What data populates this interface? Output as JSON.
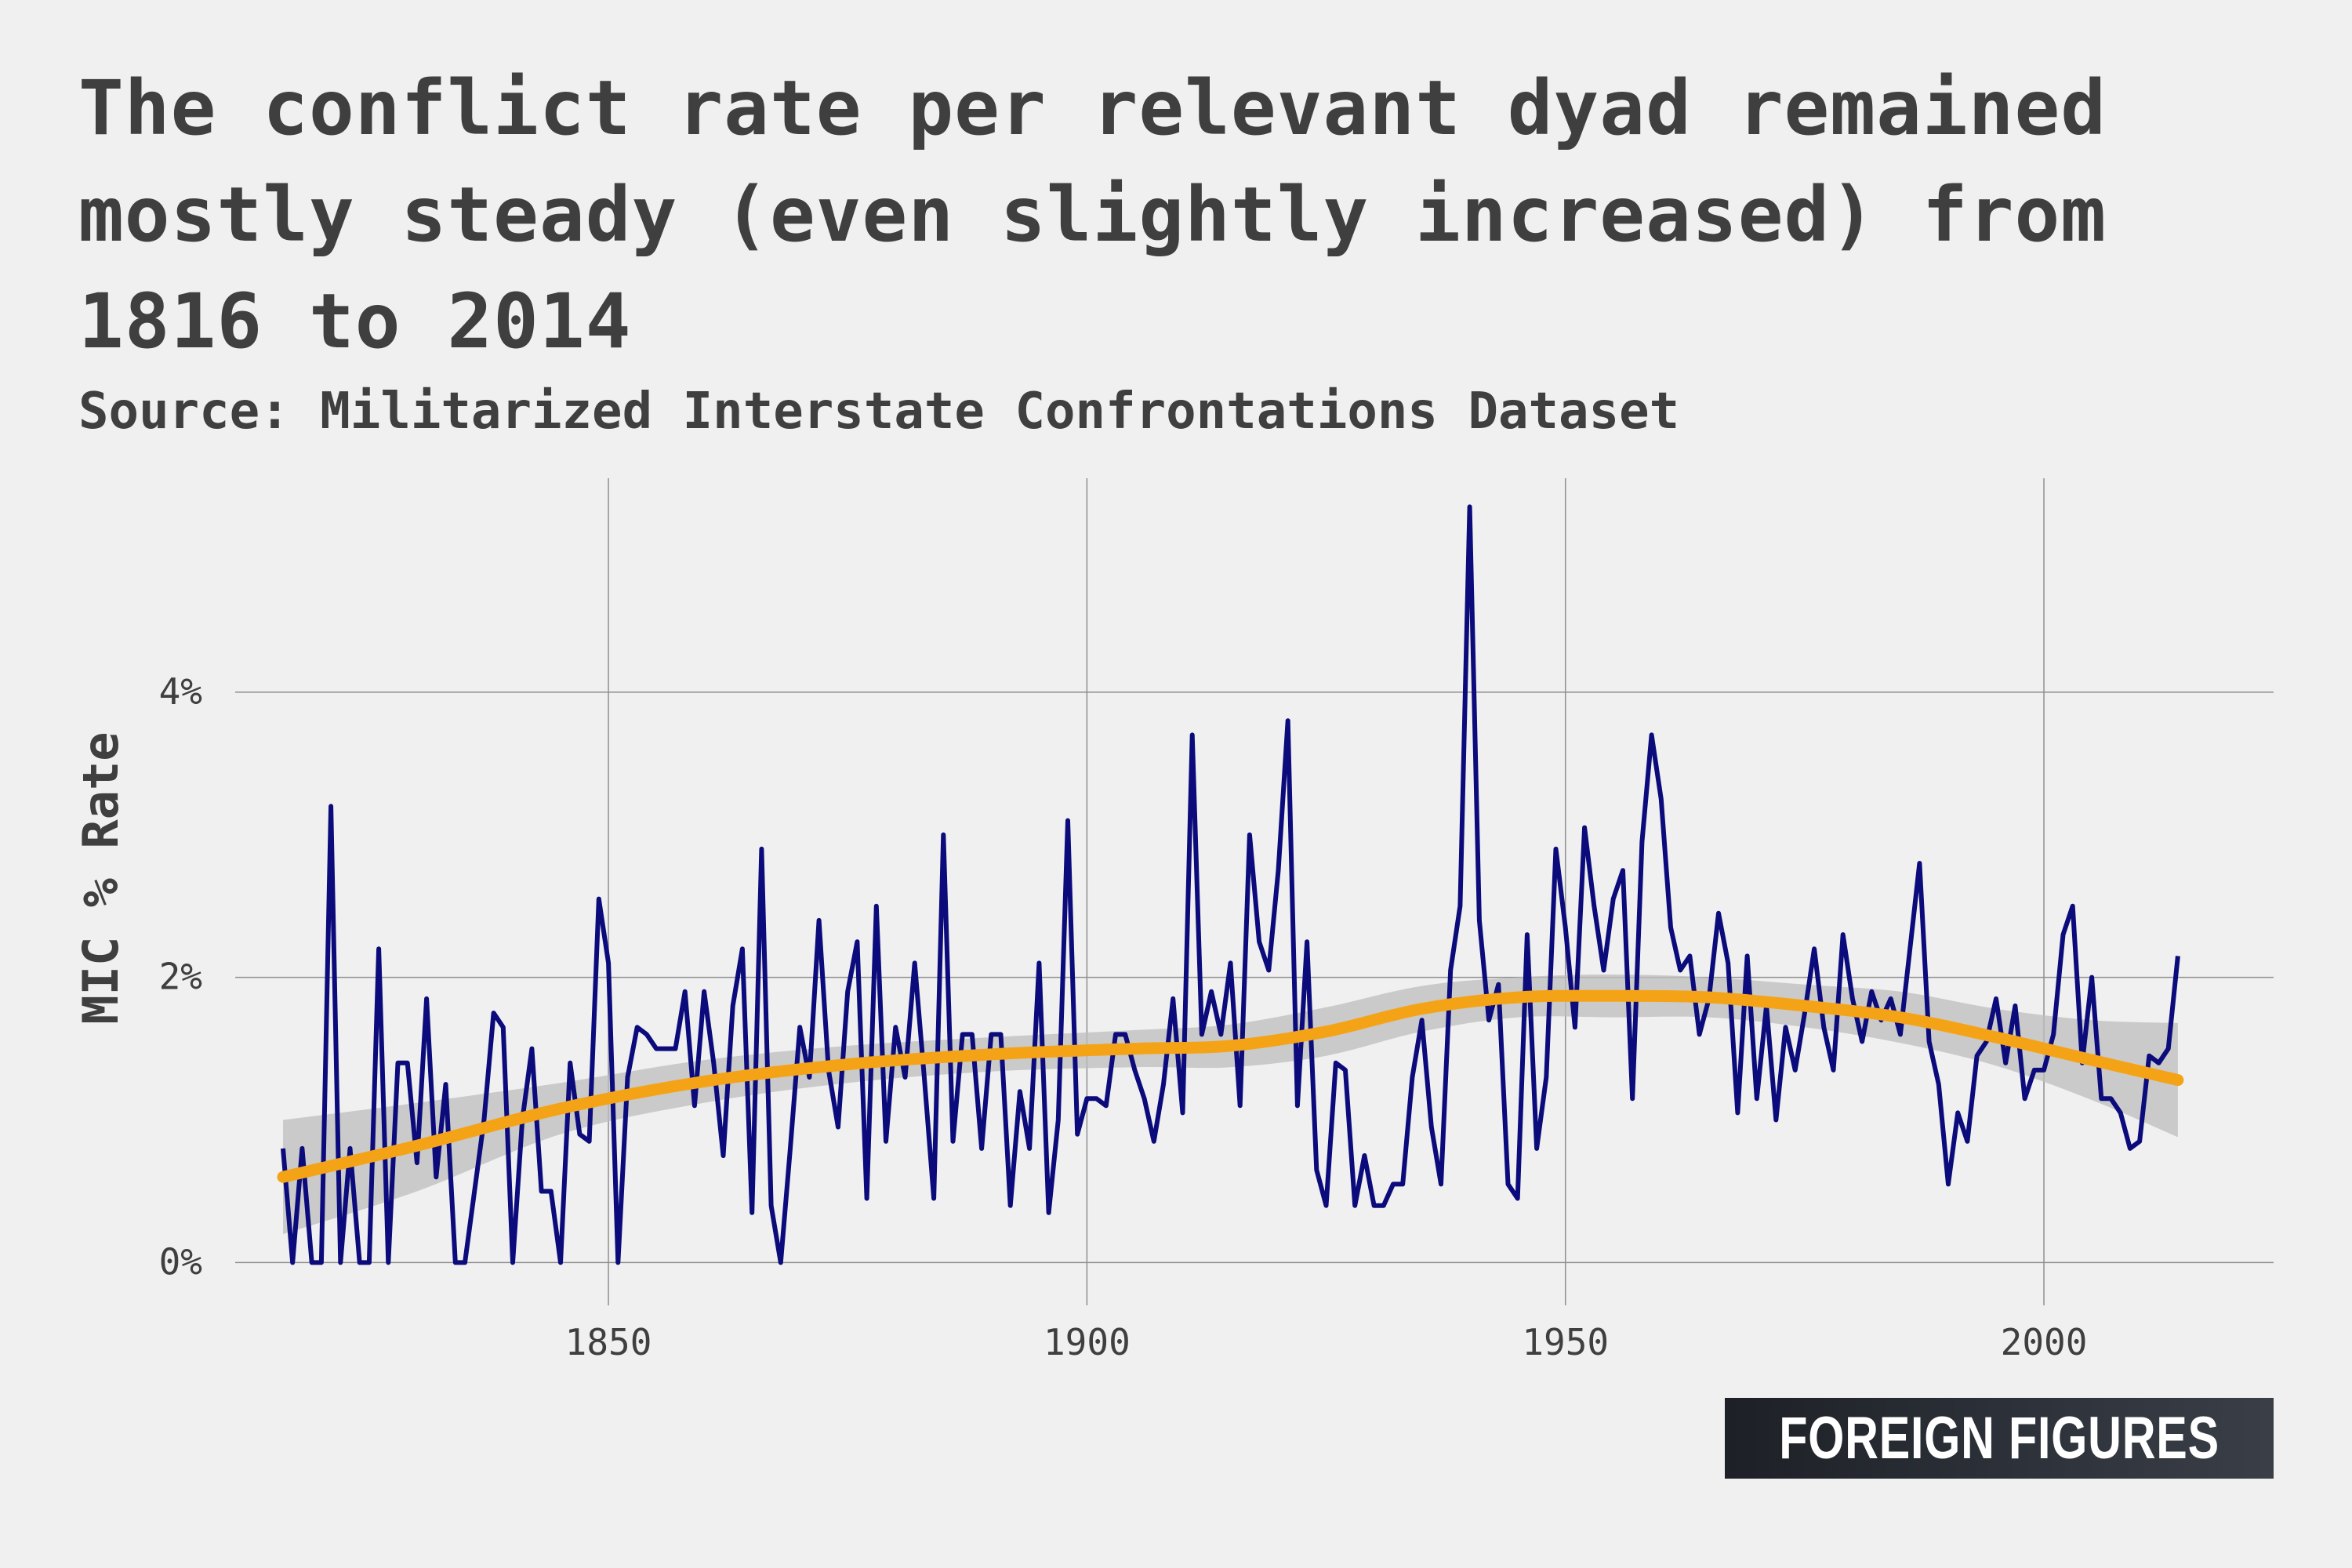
{
  "title": "The conflict rate per relevant dyad remained mostly steady (even slightly increased) from 1816 to 2014",
  "subtitle": "Source: Militarized Interstate Confrontations Dataset",
  "logo": "FOREIGN FIGURES",
  "colors": {
    "background": "#f0f0f0",
    "series": "#0b0b7c",
    "trend": "#f5a316",
    "band": "#bdbdbd",
    "grid": "#8f8f8f",
    "text": "#3f3f3f"
  },
  "chart_data": {
    "type": "line",
    "title": "The conflict rate per relevant dyad remained mostly steady (even slightly increased) from 1816 to 2014",
    "subtitle": "Source: Militarized Interstate Confrontations Dataset",
    "xlabel": "",
    "ylabel": "MIC % Rate",
    "xlim": [
      1811,
      2024
    ],
    "ylim": [
      -0.3,
      5.5
    ],
    "x_ticks": [
      1850,
      1900,
      1950,
      2000
    ],
    "y_ticks": [
      0,
      2,
      4
    ],
    "y_tick_labels": [
      "0%",
      "2%",
      "4%"
    ],
    "grid": true,
    "legend": "none",
    "series": [
      {
        "x": [
          1816,
          1817,
          1818,
          1819,
          1820,
          1821,
          1822,
          1823,
          1824,
          1825,
          1826,
          1827,
          1828,
          1829,
          1830,
          1831,
          1832,
          1833,
          1834,
          1835,
          1836,
          1837,
          1838,
          1839,
          1840,
          1841,
          1842,
          1843,
          1844,
          1845,
          1846,
          1847,
          1848,
          1849,
          1850,
          1851,
          1852,
          1853,
          1854,
          1855,
          1856,
          1857,
          1858,
          1859,
          1860,
          1861,
          1862,
          1863,
          1864,
          1865,
          1866,
          1867,
          1868,
          1869,
          1870,
          1871,
          1872,
          1873,
          1874,
          1875,
          1876,
          1877,
          1878,
          1879,
          1880,
          1881,
          1882,
          1883,
          1884,
          1885,
          1886,
          1887,
          1888,
          1889,
          1890,
          1891,
          1892,
          1893,
          1894,
          1895,
          1896,
          1897,
          1898,
          1899,
          1900,
          1901,
          1902,
          1903,
          1904,
          1905,
          1906,
          1907,
          1908,
          1909,
          1910,
          1911,
          1912,
          1913,
          1914,
          1915,
          1916,
          1917,
          1918,
          1919,
          1920,
          1921,
          1922,
          1923,
          1924,
          1925,
          1926,
          1927,
          1928,
          1929,
          1930,
          1931,
          1932,
          1933,
          1934,
          1935,
          1936,
          1937,
          1938,
          1939,
          1940,
          1941,
          1942,
          1943,
          1944,
          1945,
          1946,
          1947,
          1948,
          1949,
          1950,
          1951,
          1952,
          1953,
          1954,
          1955,
          1956,
          1957,
          1958,
          1959,
          1960,
          1961,
          1962,
          1963,
          1964,
          1965,
          1966,
          1967,
          1968,
          1969,
          1970,
          1971,
          1972,
          1973,
          1974,
          1975,
          1976,
          1977,
          1978,
          1979,
          1980,
          1981,
          1982,
          1983,
          1984,
          1985,
          1986,
          1987,
          1988,
          1989,
          1990,
          1991,
          1992,
          1993,
          1994,
          1995,
          1996,
          1997,
          1998,
          1999,
          2000,
          2001,
          2002,
          2003,
          2004,
          2005,
          2006,
          2007,
          2008,
          2009,
          2010,
          2011,
          2012,
          2013,
          2014
        ],
        "values": [
          0.8,
          0.0,
          0.8,
          0.0,
          0.0,
          3.2,
          0.0,
          0.8,
          0.0,
          0.0,
          2.2,
          0.0,
          1.4,
          1.4,
          0.7,
          1.85,
          0.6,
          1.25,
          0.0,
          0.0,
          0.5,
          1.0,
          1.75,
          1.65,
          0.0,
          1.0,
          1.5,
          0.5,
          0.5,
          0.0,
          1.4,
          0.9,
          0.85,
          2.55,
          2.1,
          0.0,
          1.3,
          1.65,
          1.6,
          1.5,
          1.5,
          1.5,
          1.9,
          1.1,
          1.9,
          1.4,
          0.75,
          1.8,
          2.2,
          0.35,
          2.9,
          0.4,
          0.0,
          0.8,
          1.65,
          1.3,
          2.4,
          1.35,
          0.95,
          1.9,
          2.25,
          0.45,
          2.5,
          0.85,
          1.65,
          1.3,
          2.1,
          1.3,
          0.45,
          3.0,
          0.85,
          1.6,
          1.6,
          0.8,
          1.6,
          1.6,
          0.4,
          1.2,
          0.8,
          2.1,
          0.35,
          1.0,
          3.1,
          0.9,
          1.15,
          1.15,
          1.1,
          1.6,
          1.6,
          1.35,
          1.15,
          0.85,
          1.25,
          1.85,
          1.05,
          3.7,
          1.6,
          1.9,
          1.6,
          2.1,
          1.1,
          3.0,
          2.25,
          2.05,
          2.75,
          3.8,
          1.1,
          2.25,
          0.65,
          0.4,
          1.4,
          1.35,
          0.4,
          0.75,
          0.4,
          0.4,
          0.55,
          0.55,
          1.3,
          1.7,
          0.95,
          0.55,
          2.05,
          2.5,
          5.3,
          2.4,
          1.7,
          1.95,
          0.55,
          0.45,
          2.3,
          0.8,
          1.3,
          2.9,
          2.35,
          1.65,
          3.05,
          2.5,
          2.05,
          2.55,
          2.75,
          1.15,
          2.95,
          3.7,
          3.25,
          2.35,
          2.05,
          2.15,
          1.6,
          1.85,
          2.45,
          2.1,
          1.05,
          2.15,
          1.15,
          1.8,
          1.0,
          1.65,
          1.35,
          1.75,
          2.2,
          1.65,
          1.35,
          2.3,
          1.85,
          1.55,
          1.9,
          1.7,
          1.85,
          1.6,
          2.2,
          2.8,
          1.55,
          1.25,
          0.55,
          1.05,
          0.85,
          1.45,
          1.55,
          1.85,
          1.4,
          1.8,
          1.15,
          1.35,
          1.35,
          1.6,
          2.3,
          2.5,
          1.4,
          2.0,
          1.15,
          1.15,
          1.05,
          0.8,
          0.85,
          1.45,
          1.4,
          1.5,
          2.15
        ]
      },
      {
        "x": [
          1816,
          1830,
          1845,
          1860,
          1875,
          1890,
          1905,
          1915,
          1925,
          1935,
          1945,
          1955,
          1965,
          1975,
          1985,
          1995,
          2005,
          2014
        ],
        "values": [
          0.6,
          0.82,
          1.08,
          1.27,
          1.39,
          1.46,
          1.5,
          1.52,
          1.62,
          1.78,
          1.86,
          1.87,
          1.86,
          1.8,
          1.72,
          1.58,
          1.42,
          1.28
        ],
        "lower": [
          0.2,
          0.5,
          0.9,
          1.12,
          1.26,
          1.34,
          1.37,
          1.37,
          1.45,
          1.62,
          1.72,
          1.72,
          1.72,
          1.65,
          1.54,
          1.38,
          1.14,
          0.88
        ],
        "upper": [
          1.0,
          1.12,
          1.26,
          1.42,
          1.52,
          1.58,
          1.63,
          1.67,
          1.79,
          1.94,
          2.0,
          2.02,
          2.0,
          1.95,
          1.9,
          1.78,
          1.7,
          1.68
        ]
      }
    ]
  }
}
